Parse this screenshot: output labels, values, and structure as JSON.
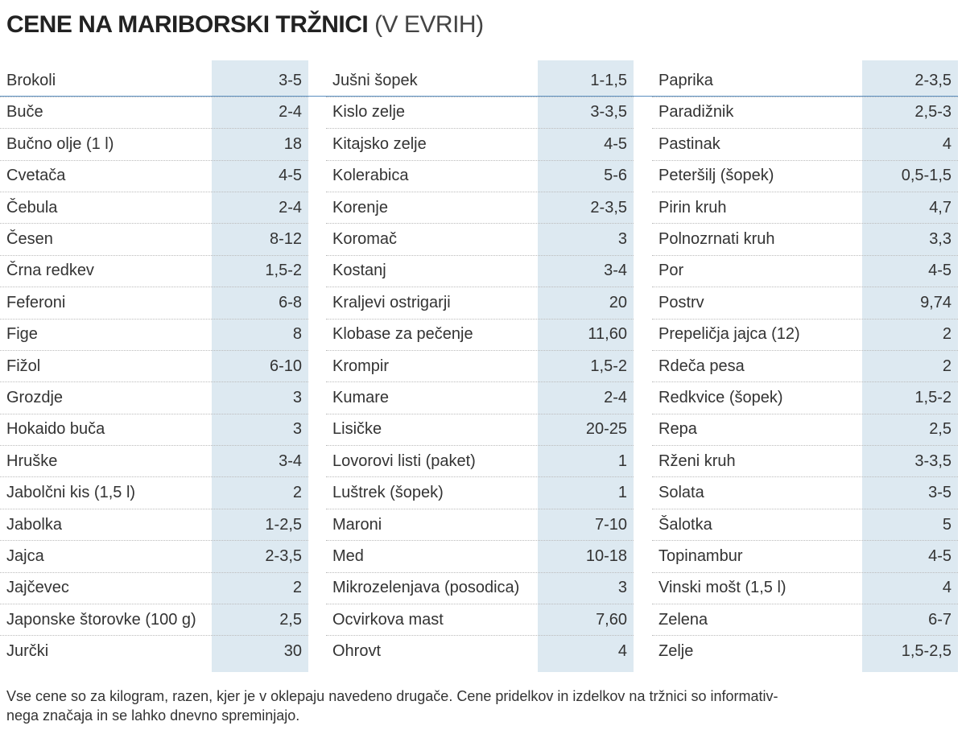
{
  "header": {
    "title": "CENE NA MARIBORSKI TRŽNICI",
    "subtitle": "(V EVRIH)"
  },
  "table": {
    "columns": [
      {
        "rows": [
          [
            "Brokoli",
            "3-5"
          ],
          [
            "Buče",
            "2-4"
          ],
          [
            "Bučno olje (1 l)",
            "18"
          ],
          [
            "Cvetača",
            "4-5"
          ],
          [
            "Čebula",
            "2-4"
          ],
          [
            "Česen",
            "8-12"
          ],
          [
            "Črna redkev",
            "1,5-2"
          ],
          [
            "Feferoni",
            "6-8"
          ],
          [
            "Fige",
            "8"
          ],
          [
            "Fižol",
            "6-10"
          ],
          [
            "Grozdje",
            "3"
          ],
          [
            "Hokaido buča",
            "3"
          ],
          [
            "Hruške",
            "3-4"
          ],
          [
            "Jabolčni kis (1,5 l)",
            "2"
          ],
          [
            "Jabolka",
            "1-2,5"
          ],
          [
            "Jajca",
            "2-3,5"
          ],
          [
            "Jajčevec",
            "2"
          ],
          [
            "Japonske štorovke (100 g)",
            "2,5"
          ],
          [
            "Jurčki",
            "30"
          ]
        ]
      },
      {
        "rows": [
          [
            "Jušni šopek",
            "1-1,5"
          ],
          [
            "Kislo zelje",
            "3-3,5"
          ],
          [
            "Kitajsko zelje",
            "4-5"
          ],
          [
            "Kolerabica",
            "5-6"
          ],
          [
            "Korenje",
            "2-3,5"
          ],
          [
            "Koromač",
            "3"
          ],
          [
            "Kostanj",
            "3-4"
          ],
          [
            "Kraljevi ostrigarji",
            "20"
          ],
          [
            "Klobase za pečenje",
            "11,60"
          ],
          [
            "Krompir",
            "1,5-2"
          ],
          [
            "Kumare",
            "2-4"
          ],
          [
            "Lisičke",
            "20-25"
          ],
          [
            "Lovorovi listi (paket)",
            "1"
          ],
          [
            "Luštrek (šopek)",
            "1"
          ],
          [
            "Maroni",
            "7-10"
          ],
          [
            "Med",
            "10-18"
          ],
          [
            "Mikrozelenjava (posodica)",
            "3"
          ],
          [
            "Ocvirkova mast",
            "7,60"
          ],
          [
            "Ohrovt",
            "4"
          ]
        ]
      },
      {
        "rows": [
          [
            "Paprika",
            "2-3,5"
          ],
          [
            "Paradižnik",
            "2,5-3"
          ],
          [
            "Pastinak",
            "4"
          ],
          [
            "Peteršilj (šopek)",
            "0,5-1,5"
          ],
          [
            "Pirin kruh",
            "4,7"
          ],
          [
            "Polnozrnati kruh",
            "3,3"
          ],
          [
            "Por",
            "4-5"
          ],
          [
            "Postrv",
            "9,74"
          ],
          [
            "Prepeličja jajca (12)",
            "2"
          ],
          [
            "Rdeča pesa",
            "2"
          ],
          [
            "Redkvice (šopek)",
            "1,5-2"
          ],
          [
            "Repa",
            "2,5"
          ],
          [
            "Rženi kruh",
            "3-3,5"
          ],
          [
            "Solata",
            "3-5"
          ],
          [
            "Šalotka",
            "5"
          ],
          [
            "Topinambur",
            "4-5"
          ],
          [
            "Vinski mošt (1,5 l)",
            "4"
          ],
          [
            "Zelena",
            "6-7"
          ],
          [
            "Zelje",
            "1,5-2,5"
          ]
        ]
      }
    ]
  },
  "footnote": {
    "lines": [
      "Vse cene so za kilogram, razen, kjer je v oklepaju navedeno drugače. Cene pridelkov in izdelkov na tržnici so informativ-",
      "nega značaja in se lahko dnevno spreminjajo."
    ]
  }
}
